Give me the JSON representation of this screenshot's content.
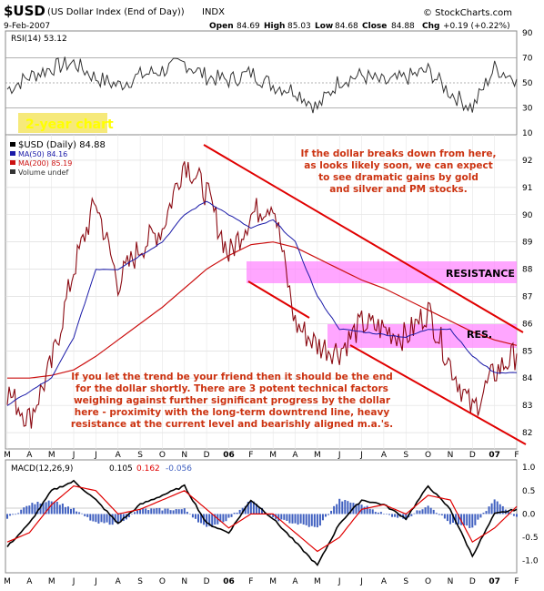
{
  "header": {
    "symbol": "$USD",
    "name": "(US Dollar Index (End of Day))",
    "exchange": "INDX",
    "date": "9-Feb-2007",
    "open_label": "Open",
    "open": "84.69",
    "high_label": "High",
    "high": "85.03",
    "low_label": "Low",
    "low": "84.68",
    "close_label": "Close",
    "close": "84.88",
    "chg_label": "Chg",
    "chg": "+0.19 (+0.22%)",
    "copyright": "© StockCharts.com"
  },
  "rsi": {
    "label": "RSI(14) 53.12",
    "ticks": [
      "90",
      "70",
      "50",
      "30",
      "10"
    ]
  },
  "main": {
    "badge": "2-year chart",
    "legend": [
      {
        "text": "$USD (Daily) 84.88",
        "color": "#000000"
      },
      {
        "text": "MA(50) 84.16",
        "color": "#1a1aa8"
      },
      {
        "text": "MA(200) 85.19",
        "color": "#cc1111"
      },
      {
        "text": "Volume undef",
        "color": "#333333"
      }
    ],
    "price_ticks": [
      "92",
      "91",
      "90",
      "89",
      "88",
      "87",
      "86",
      "85",
      "84",
      "83",
      "82"
    ],
    "resistance_label": "RESISTANCE",
    "res_label": "RES.",
    "note_top": [
      "If the dollar breaks down from here,",
      "as looks likely soon, we can expect",
      "to see dramatic gains by gold",
      "and silver and PM stocks."
    ],
    "note_bottom": [
      "If you let the trend be your friend then it should be the end",
      "for the dollar shortly. There are 3 potent technical factors",
      "weighing against further significant progress by the dollar",
      "here - proximity with the long-term downtrend line, heavy",
      "resistance at the current level and bearishly aligned m.a.'s."
    ]
  },
  "month_labels": [
    "M",
    "A",
    "M",
    "J",
    "J",
    "A",
    "S",
    "O",
    "N",
    "D",
    "06",
    "F",
    "M",
    "A",
    "M",
    "J",
    "J",
    "A",
    "S",
    "O",
    "N",
    "D",
    "07",
    "F"
  ],
  "macd": {
    "label": "MACD(12,26,9)",
    "v1": "0.105",
    "v2": "0.162",
    "v3": "-0.056",
    "ticks": [
      "1.0",
      "0.5",
      "0.0",
      "-0.5",
      "-1.0"
    ]
  },
  "colors": {
    "price": "#8b0a12",
    "ma50": "#1a1aa8",
    "ma200": "#cc1111",
    "trendline": "#e00000",
    "resistance_band": "#ff80ff",
    "note_text": "#cc3311",
    "badge": "#ffff00",
    "panel_bg": "#ffffff",
    "hist": "#4060c0"
  },
  "chart_data": [
    {
      "type": "line",
      "name": "RSI(14)",
      "ylim": [
        10,
        90
      ],
      "x": [
        "2005-03",
        "2005-04",
        "2005-05",
        "2005-06",
        "2005-07",
        "2005-08",
        "2005-09",
        "2005-10",
        "2005-11",
        "2005-12",
        "2006-01",
        "2006-02",
        "2006-03",
        "2006-04",
        "2006-05",
        "2006-06",
        "2006-07",
        "2006-08",
        "2006-09",
        "2006-10",
        "2006-11",
        "2006-12",
        "2007-01",
        "2007-02"
      ],
      "values": [
        45,
        55,
        62,
        66,
        54,
        48,
        56,
        60,
        66,
        55,
        52,
        58,
        48,
        44,
        30,
        52,
        56,
        50,
        54,
        60,
        42,
        30,
        62,
        53
      ]
    },
    {
      "type": "line",
      "title": "$USD (Daily) 84.88",
      "ylim": [
        81.5,
        92.8
      ],
      "x": [
        "2005-03",
        "2005-04",
        "2005-05",
        "2005-06",
        "2005-07",
        "2005-08",
        "2005-09",
        "2005-10",
        "2005-11",
        "2005-12",
        "2006-01",
        "2006-02",
        "2006-03",
        "2006-04",
        "2006-05",
        "2006-06",
        "2006-07",
        "2006-08",
        "2006-09",
        "2006-10",
        "2006-11",
        "2006-12",
        "2007-01",
        "2007-02"
      ],
      "series": [
        {
          "name": "$USD (Daily) 84.88",
          "values": [
            83.5,
            82.5,
            84.5,
            88.0,
            90.5,
            87.5,
            88.8,
            89.5,
            92.0,
            90.8,
            88.5,
            90.0,
            90.5,
            86.0,
            85.2,
            85.0,
            86.0,
            85.8,
            85.5,
            86.5,
            84.5,
            82.8,
            84.2,
            84.9
          ]
        },
        {
          "name": "MA(50) 84.16",
          "values": [
            83.0,
            83.5,
            84.0,
            85.5,
            88.0,
            88.0,
            88.5,
            89.0,
            90.0,
            90.5,
            90.0,
            89.5,
            89.8,
            89.0,
            87.0,
            85.8,
            85.7,
            85.6,
            85.5,
            85.8,
            85.8,
            84.8,
            84.2,
            84.2
          ]
        },
        {
          "name": "MA(200) 85.19",
          "values": [
            84.0,
            84.0,
            84.1,
            84.3,
            84.8,
            85.4,
            86.0,
            86.6,
            87.3,
            88.0,
            88.5,
            88.9,
            89.0,
            88.8,
            88.4,
            88.0,
            87.6,
            87.3,
            86.9,
            86.5,
            86.1,
            85.7,
            85.4,
            85.2
          ]
        }
      ]
    },
    {
      "type": "line",
      "name": "MACD(12,26,9)",
      "ylim": [
        -1.2,
        1.1
      ],
      "x": [
        "2005-03",
        "2005-04",
        "2005-05",
        "2005-06",
        "2005-07",
        "2005-08",
        "2005-09",
        "2005-10",
        "2005-11",
        "2005-12",
        "2006-01",
        "2006-02",
        "2006-03",
        "2006-04",
        "2006-05",
        "2006-06",
        "2006-07",
        "2006-08",
        "2006-09",
        "2006-10",
        "2006-11",
        "2006-12",
        "2007-01",
        "2007-02"
      ],
      "series": [
        {
          "name": "0.105",
          "values": [
            -0.7,
            -0.2,
            0.5,
            0.7,
            0.3,
            -0.2,
            0.2,
            0.4,
            0.6,
            -0.2,
            -0.4,
            0.3,
            -0.1,
            -0.6,
            -1.1,
            -0.2,
            0.3,
            0.2,
            -0.1,
            0.6,
            0.1,
            -0.9,
            0.0,
            0.1
          ]
        },
        {
          "name": "0.162",
          "values": [
            -0.6,
            -0.4,
            0.2,
            0.6,
            0.5,
            0.0,
            0.1,
            0.3,
            0.5,
            0.1,
            -0.3,
            0.0,
            0.0,
            -0.4,
            -0.8,
            -0.5,
            0.1,
            0.2,
            0.0,
            0.4,
            0.3,
            -0.6,
            -0.3,
            0.16
          ]
        },
        {
          "name": "-0.056",
          "values": [
            -0.1,
            0.2,
            0.3,
            0.1,
            -0.2,
            -0.2,
            0.1,
            0.1,
            0.1,
            -0.3,
            -0.1,
            0.3,
            -0.1,
            -0.2,
            -0.3,
            0.3,
            0.2,
            0.0,
            -0.1,
            0.2,
            -0.2,
            -0.3,
            0.3,
            -0.06
          ]
        }
      ]
    }
  ]
}
